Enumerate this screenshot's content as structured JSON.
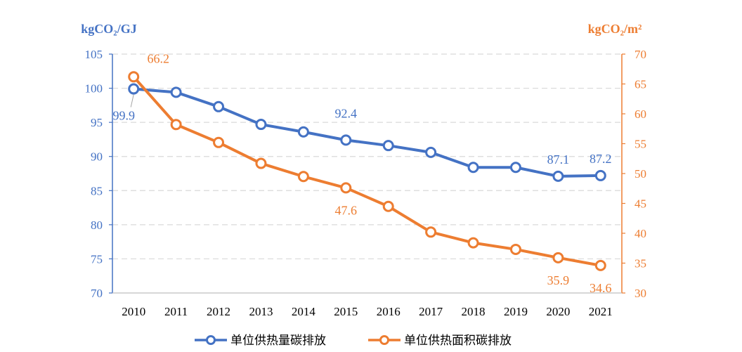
{
  "chart_data": {
    "type": "line",
    "categories": [
      "2010",
      "2011",
      "2012",
      "2013",
      "2014",
      "2015",
      "2016",
      "2017",
      "2018",
      "2019",
      "2020",
      "2021"
    ],
    "series": [
      {
        "name": "单位供热量碳排放",
        "axis": "left",
        "color": "#4472C4",
        "values": [
          99.9,
          99.4,
          97.3,
          94.7,
          93.6,
          92.4,
          91.6,
          90.6,
          88.4,
          88.4,
          87.1,
          87.2
        ],
        "labels": [
          {
            "index": 0,
            "text": "99.9"
          },
          {
            "index": 5,
            "text": "92.4"
          },
          {
            "index": 10,
            "text": "87.1"
          },
          {
            "index": 11,
            "text": "87.2"
          }
        ]
      },
      {
        "name": "单位供热面积碳排放",
        "axis": "right",
        "color": "#ED7D31",
        "values": [
          66.2,
          58.2,
          55.2,
          51.7,
          49.5,
          47.6,
          44.5,
          40.2,
          38.4,
          37.3,
          35.9,
          34.6
        ],
        "labels": [
          {
            "index": 0,
            "text": "66.2"
          },
          {
            "index": 5,
            "text": "47.6"
          },
          {
            "index": 10,
            "text": "35.9"
          },
          {
            "index": 11,
            "text": "34.6"
          }
        ]
      }
    ],
    "y_left": {
      "unit": "kgCO₂/GJ",
      "range": [
        70,
        105
      ],
      "ticks": [
        "70",
        "75",
        "80",
        "85",
        "90",
        "95",
        "100",
        "105"
      ]
    },
    "y_right": {
      "unit": "kgCO₂/m²",
      "range": [
        30,
        70
      ],
      "ticks": [
        "30",
        "35",
        "40",
        "45",
        "50",
        "55",
        "60",
        "65",
        "70"
      ]
    },
    "grid": "horizontal-dashed",
    "legend_position": "bottom"
  }
}
